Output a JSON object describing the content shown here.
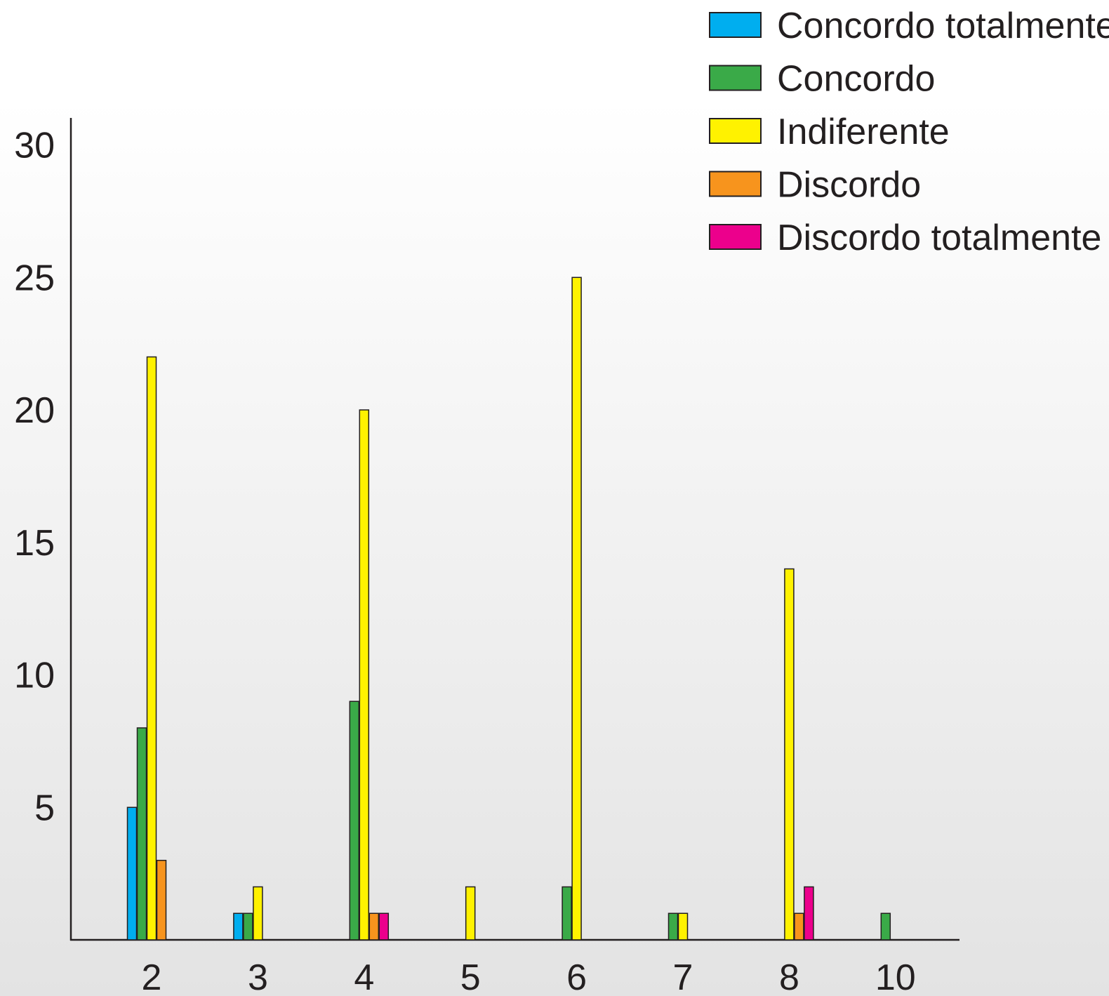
{
  "chart_data": {
    "type": "bar",
    "categories": [
      "2",
      "3",
      "4",
      "5",
      "6",
      "7",
      "8",
      "10"
    ],
    "y_ticks": [
      5,
      10,
      15,
      20,
      25,
      30
    ],
    "ylim": [
      0,
      30.6
    ],
    "grid": false,
    "legend_position": "top-right",
    "series": [
      {
        "name": "Concordo totalmente",
        "color": "#00aeef",
        "values": [
          5,
          1,
          0,
          0,
          0,
          0,
          0,
          0
        ]
      },
      {
        "name": "Concordo",
        "color": "#3aaa48",
        "values": [
          8,
          1,
          9,
          0,
          2,
          1,
          0,
          1
        ]
      },
      {
        "name": "Indiferente",
        "color": "#fff200",
        "values": [
          22,
          2,
          20,
          2,
          25,
          1,
          14,
          0
        ]
      },
      {
        "name": "Discordo",
        "color": "#f7941d",
        "values": [
          3,
          0,
          1,
          0,
          0,
          0,
          1,
          0
        ]
      },
      {
        "name": "Discordo totalmente",
        "color": "#ec008c",
        "values": [
          0,
          0,
          1,
          0,
          0,
          0,
          2,
          0
        ]
      }
    ]
  }
}
